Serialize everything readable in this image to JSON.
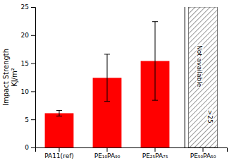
{
  "chart_data": {
    "type": "bar",
    "categories": [
      "PA11(ref)",
      "PE₁₀PA₉₀",
      "PE₂₅PA₇₅",
      "PE₅₀PA₅₀"
    ],
    "values": [
      6.1,
      12.4,
      15.4,
      null
    ],
    "errors": [
      0.5,
      4.2,
      7.0,
      null
    ],
    "color": "#ff0000",
    "ylabel": "Impact Strength\nKJ/m²",
    "ylim": [
      0,
      25
    ],
    "yticks": [
      0,
      5,
      10,
      15,
      20,
      25
    ],
    "annotations": [
      "Not available",
      ">25"
    ],
    "grid": false
  }
}
